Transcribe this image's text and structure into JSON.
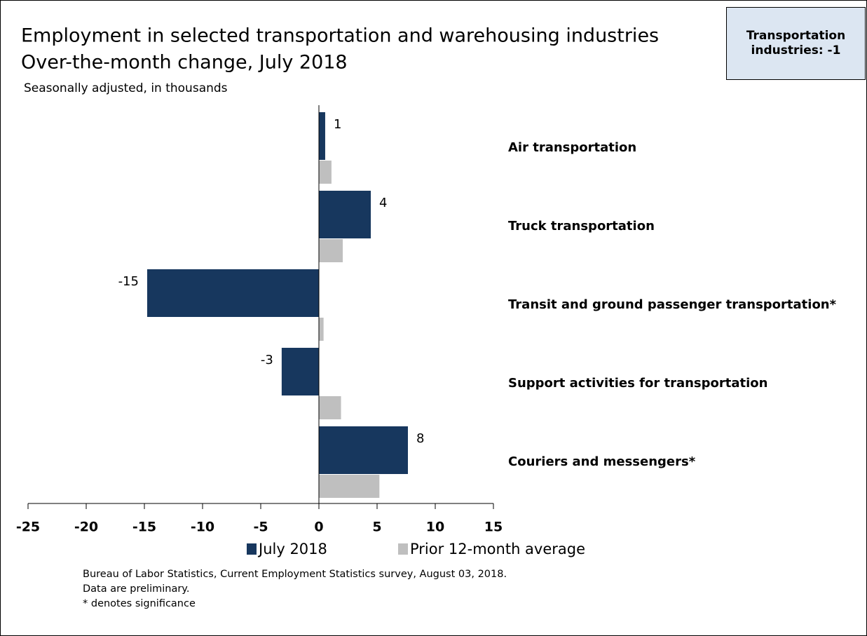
{
  "chart_data": {
    "type": "hbar",
    "title": "Employment in selected transportation and warehousing industries",
    "subtitle": "Over-the-month change, July 2018",
    "note": "Seasonally adjusted, in thousands",
    "annotation": "Transportation industries: -1",
    "categories": [
      "Air transportation",
      "Truck transportation",
      "Transit and ground passenger transportation*",
      "Support activities for transportation",
      "Couriers and messengers*"
    ],
    "series": [
      {
        "name": "July 2018",
        "color": "#17375e",
        "values": [
          0.54,
          4.46,
          -14.76,
          -3.2,
          7.65
        ],
        "value_labels": [
          "1",
          "4",
          "-15",
          "-3",
          "8"
        ]
      },
      {
        "name": "Prior 12-month average",
        "color": "#bfbfbf",
        "values": [
          1.08,
          2.05,
          0.4,
          1.9,
          5.2
        ]
      }
    ],
    "xlim": [
      -25,
      15
    ],
    "xticks": [
      -25,
      -20,
      -15,
      -10,
      -5,
      0,
      5,
      10,
      15
    ],
    "source": [
      "Bureau of Labor Statistics, Current Employment Statistics survey, August 03, 2018.",
      "Data are preliminary.",
      "* denotes significance"
    ]
  }
}
